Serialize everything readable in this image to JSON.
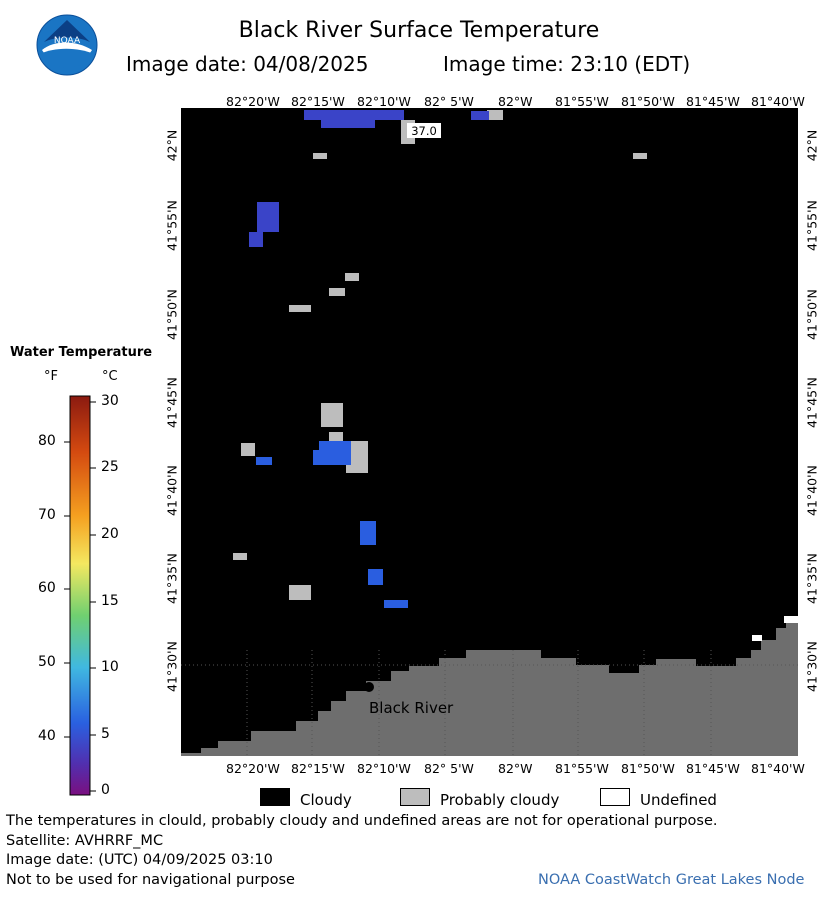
{
  "header": {
    "title": "Black River Surface Temperature",
    "image_date_label": "Image date: 04/08/2025",
    "image_time_label": "Image time: 23:10 (EDT)",
    "logo_text": "NOAA"
  },
  "map": {
    "lon_labels": [
      "82°20'W",
      "82°15'W",
      "82°10'W",
      "82° 5'W",
      "82°W",
      "81°55'W",
      "81°50'W",
      "81°45'W",
      "81°40'W"
    ],
    "lat_labels": [
      "42°N",
      "41°55'N",
      "41°50'N",
      "41°45'N",
      "41°40'N",
      "41°35'N",
      "41°30'N"
    ],
    "sample_value": "37.0",
    "place_label": "Black River",
    "colors": {
      "cloud": "#000000",
      "probably_cloudy": "#bdbdbd",
      "land": "#6e6e6e",
      "water_warm": "#3a44c8",
      "water_cool": "#2a5ee0"
    }
  },
  "scale": {
    "title": "Water Temperature",
    "unit_f": "°F",
    "unit_c": "°C",
    "f_ticks": [
      "80",
      "70",
      "60",
      "50",
      "40"
    ],
    "c_ticks": [
      "30",
      "25",
      "20",
      "15",
      "10",
      "5",
      "0"
    ]
  },
  "legend": {
    "cloudy": "Cloudy",
    "probably_cloudy": "Probably cloudy",
    "undefined": "Undefined"
  },
  "footer": {
    "disclaimer": "The temperatures in clould, probably cloudy and undefined areas are not for operational purpose.",
    "satellite": "Satellite: AVHRRF_MC",
    "utc_date": "Image date: (UTC) 04/09/2025  03:10",
    "nav_warning": "Not to be used for navigational purpose",
    "credit": "NOAA CoastWatch Great Lakes Node"
  }
}
